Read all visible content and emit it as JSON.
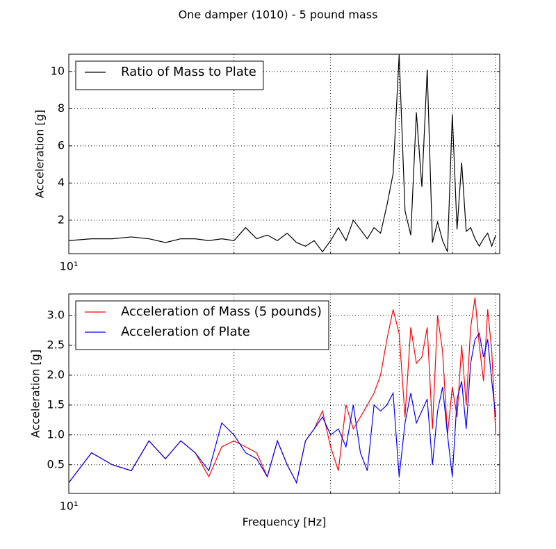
{
  "title": "One damper (1010) - 5 pound mass",
  "chart_data": [
    {
      "type": "line",
      "ylabel": "Acceleration [g]",
      "log_x": true,
      "grid": true,
      "legend": "upper left",
      "x": [
        10,
        11,
        12,
        13,
        14,
        15,
        16,
        17,
        18,
        19,
        20,
        21,
        22,
        23,
        24,
        25,
        26,
        27,
        28,
        29,
        30,
        31,
        32,
        33,
        34,
        35,
        36,
        37,
        38,
        39,
        40,
        41,
        42,
        43,
        44,
        45,
        46,
        47,
        48,
        49,
        50,
        51,
        52,
        53,
        54,
        55,
        56,
        57,
        58,
        59,
        60
      ],
      "xlim": [
        10,
        61
      ],
      "xticks": [
        {
          "value": 10,
          "label": "10¹"
        }
      ],
      "xminor": [
        20,
        30,
        40,
        50,
        60
      ],
      "ylim": [
        0.2,
        10.93
      ],
      "yticks": [
        2,
        4,
        6,
        8,
        10
      ],
      "series": [
        {
          "name": "Ratio of Mass to Plate",
          "color": "#000000",
          "values": [
            0.9,
            1.0,
            1.0,
            1.1,
            1.0,
            0.8,
            1.0,
            1.0,
            0.9,
            1.0,
            0.9,
            1.6,
            1.0,
            1.2,
            0.9,
            1.3,
            0.8,
            0.6,
            0.9,
            0.3,
            0.9,
            1.6,
            0.9,
            2.0,
            1.5,
            1.0,
            1.6,
            1.3,
            2.8,
            4.5,
            10.9,
            2.5,
            1.2,
            7.8,
            3.8,
            10.1,
            0.8,
            1.9,
            0.9,
            0.3,
            7.7,
            1.5,
            5.1,
            1.4,
            1.6,
            1.0,
            0.6,
            1.0,
            1.3,
            0.6,
            1.2
          ]
        }
      ]
    },
    {
      "type": "line",
      "ylabel": "Acceleration [g]",
      "xlabel": "Frequency [Hz]",
      "log_x": true,
      "grid": true,
      "legend": "upper left",
      "x": [
        10,
        11,
        12,
        13,
        14,
        15,
        16,
        17,
        18,
        19,
        20,
        21,
        22,
        23,
        24,
        25,
        26,
        27,
        28,
        29,
        30,
        31,
        32,
        33,
        34,
        35,
        36,
        37,
        38,
        39,
        40,
        41,
        42,
        43,
        44,
        45,
        46,
        47,
        48,
        49,
        50,
        51,
        52,
        53,
        54,
        55,
        56,
        57,
        58,
        59,
        60
      ],
      "xlim": [
        10,
        61
      ],
      "xticks": [
        {
          "value": 10,
          "label": "10¹"
        }
      ],
      "xminor": [
        20,
        30,
        40,
        50,
        60
      ],
      "ylim": [
        0.02,
        3.36
      ],
      "yticks": [
        {
          "value": 0.5,
          "label": "0.5"
        },
        {
          "value": 1,
          "label": "1.0"
        },
        {
          "value": 1.5,
          "label": "1.5"
        },
        {
          "value": 2,
          "label": "2.0"
        },
        {
          "value": 2.5,
          "label": "2.5"
        },
        {
          "value": 3,
          "label": "3.0"
        }
      ],
      "series": [
        {
          "name": "Acceleration of Mass (5 pounds)",
          "color": "#ff0000",
          "values": [
            0.2,
            0.7,
            0.5,
            0.4,
            0.9,
            0.6,
            0.9,
            0.7,
            0.3,
            0.8,
            0.9,
            0.8,
            0.7,
            0.3,
            0.9,
            0.5,
            0.2,
            0.9,
            1.1,
            1.4,
            0.8,
            0.4,
            1.5,
            1.1,
            1.3,
            1.5,
            1.7,
            2.0,
            2.6,
            3.1,
            2.7,
            1.3,
            2.8,
            2.2,
            2.3,
            2.8,
            1.1,
            3.0,
            2.4,
            1.0,
            1.8,
            1.3,
            2.5,
            1.5,
            2.8,
            3.3,
            2.5,
            1.9,
            3.1,
            2.4,
            1.0
          ]
        },
        {
          "name": "Acceleration of Plate",
          "color": "#0000ff",
          "values": [
            0.2,
            0.7,
            0.5,
            0.4,
            0.9,
            0.6,
            0.9,
            0.7,
            0.4,
            1.2,
            1.0,
            0.7,
            0.6,
            0.3,
            0.9,
            0.5,
            0.2,
            0.9,
            1.1,
            1.3,
            1.0,
            1.1,
            0.8,
            1.5,
            0.7,
            0.4,
            1.5,
            1.4,
            1.5,
            1.7,
            0.3,
            1.2,
            1.7,
            1.2,
            1.4,
            1.6,
            0.5,
            1.4,
            1.8,
            1.0,
            0.3,
            1.6,
            1.9,
            1.1,
            2.2,
            2.6,
            2.7,
            2.3,
            2.6,
            1.9,
            1.3
          ]
        }
      ]
    }
  ]
}
